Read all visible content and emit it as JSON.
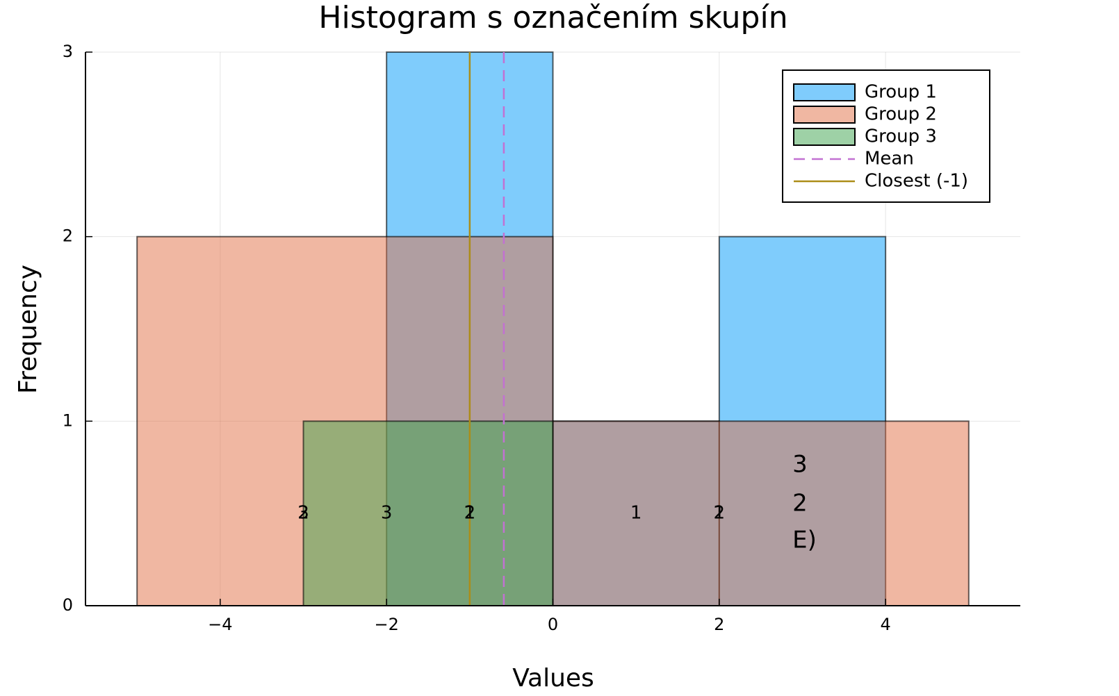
{
  "chart_data": {
    "type": "histogram",
    "title": "Histogram s označením skupín",
    "xlabel": "Values",
    "ylabel": "Frequency",
    "xlim": [
      -5.62,
      5.62
    ],
    "ylim": [
      0,
      3
    ],
    "xticks": [
      {
        "value": -4,
        "label": "−4"
      },
      {
        "value": -2,
        "label": "−2"
      },
      0,
      2,
      4
    ],
    "yticks": [
      0,
      1,
      2,
      3
    ],
    "grid": true,
    "legend": "top right",
    "series": [
      {
        "name": "Group 1",
        "color": "#009afa",
        "bins": [
          -2,
          0,
          2,
          4
        ],
        "counts": [
          3,
          1,
          2
        ]
      },
      {
        "name": "Group 2",
        "color": "#e26f46",
        "bins": [
          -5,
          0,
          5
        ],
        "counts": [
          2,
          1
        ]
      },
      {
        "name": "Group 3",
        "color": "#3ea44e",
        "bins": [
          -3,
          0
        ],
        "counts": [
          1
        ]
      }
    ],
    "lines": [
      {
        "name": "Mean",
        "x": -0.59,
        "color": "#c271d2",
        "dash": true
      },
      {
        "name": "Closest (-1)",
        "x": -1,
        "color": "#ac8d18",
        "dash": false
      }
    ],
    "annotations": [
      {
        "x": -3,
        "y": 0.5,
        "text": "2",
        "color": "#000000"
      },
      {
        "x": -3,
        "y": 0.5,
        "text": "3",
        "color": "#000000"
      },
      {
        "x": -2,
        "y": 0.5,
        "text": "3",
        "color": "#000000"
      },
      {
        "x": -1,
        "y": 0.5,
        "text": "1",
        "color": "#000000"
      },
      {
        "x": -1,
        "y": 0.5,
        "text": "2",
        "color": "#000000"
      },
      {
        "x": 1,
        "y": 0.5,
        "text": "1",
        "color": "#000000"
      },
      {
        "x": 2,
        "y": 0.5,
        "text": "1",
        "color": "#000000"
      },
      {
        "x": 2,
        "y": 0.5,
        "text": "2",
        "color": "#000000"
      },
      {
        "x": 2.88,
        "y": 0.76,
        "text": "3",
        "color": "#ff0000"
      },
      {
        "x": 2.88,
        "y": 0.55,
        "text": "2",
        "color": "#ff0000"
      },
      {
        "x": 2.88,
        "y": 0.35,
        "text": "E)",
        "color": "#ff0000"
      }
    ]
  }
}
